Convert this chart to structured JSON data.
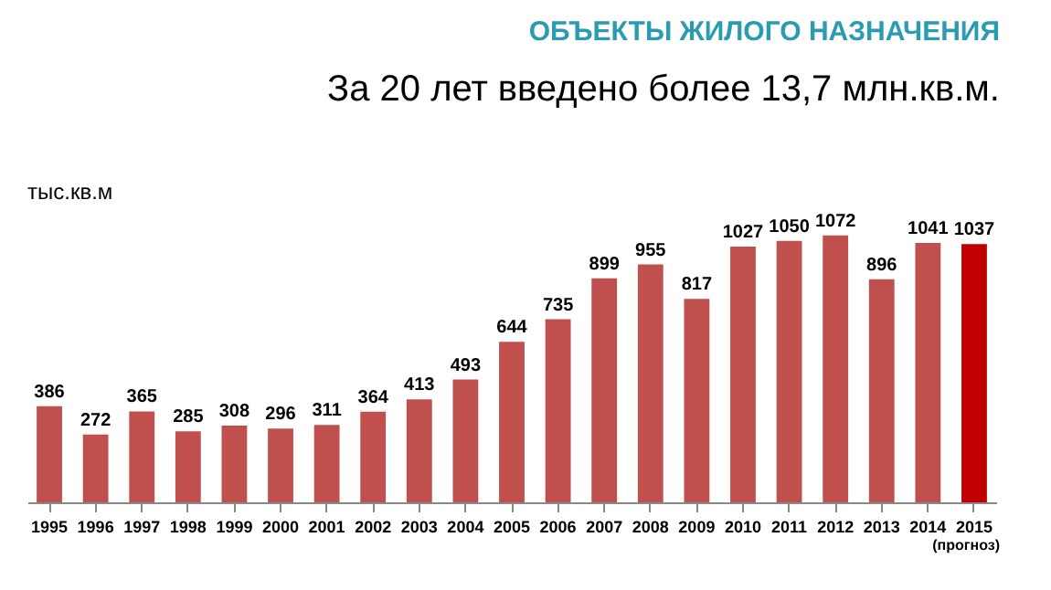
{
  "chart_data": {
    "type": "bar",
    "title": "ОБЪЕКТЫ  ЖИЛОГО НАЗНАЧЕНИЯ",
    "subtitle": "За 20 лет введено более 13,7 млн.кв.м.",
    "ylabel": "тыс.кв.м",
    "categories": [
      "1995",
      "1996",
      "1997",
      "1998",
      "1999",
      "2000",
      "2001",
      "2002",
      "2003",
      "2004",
      "2005",
      "2006",
      "2007",
      "2008",
      "2009",
      "2010",
      "2011",
      "2012",
      "2013",
      "2014",
      "2015"
    ],
    "values": [
      386,
      272,
      365,
      285,
      308,
      296,
      311,
      364,
      413,
      493,
      644,
      735,
      899,
      955,
      817,
      1027,
      1050,
      1072,
      896,
      1041,
      1037
    ],
    "colors": [
      "#c0504d",
      "#c0504d",
      "#c0504d",
      "#c0504d",
      "#c0504d",
      "#c0504d",
      "#c0504d",
      "#c0504d",
      "#c0504d",
      "#c0504d",
      "#c0504d",
      "#c0504d",
      "#c0504d",
      "#c0504d",
      "#c0504d",
      "#c0504d",
      "#c0504d",
      "#c0504d",
      "#c0504d",
      "#c0504d",
      "#c00000"
    ],
    "data_labels": true,
    "annotations": [
      "(прогноз)"
    ]
  }
}
